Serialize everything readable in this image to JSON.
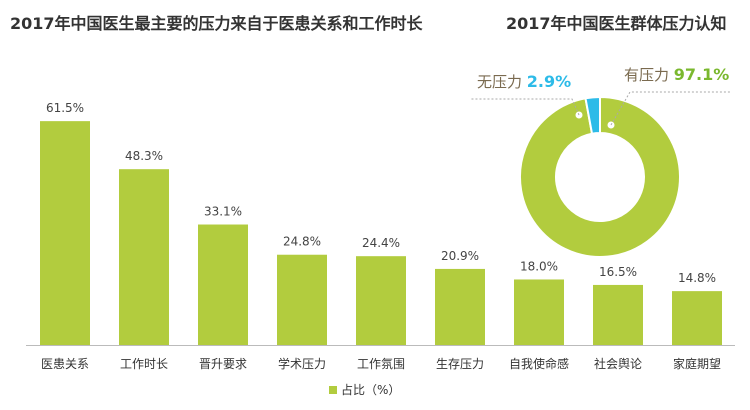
{
  "chart_data": [
    {
      "type": "bar",
      "title": "2017年中国医生最主要的压力来自于医患关系和工作时长",
      "categories": [
        "医患关系",
        "工作时长",
        "晋升要求",
        "学术压力",
        "工作氛围",
        "生存压力",
        "自我使命感",
        "社会舆论",
        "家庭期望"
      ],
      "values": [
        61.5,
        48.3,
        33.1,
        24.8,
        24.4,
        20.9,
        18.0,
        16.5,
        14.8
      ],
      "value_labels": [
        "61.5%",
        "48.3%",
        "33.1%",
        "24.8%",
        "24.4%",
        "20.9%",
        "18.0%",
        "16.5%",
        "14.8%"
      ],
      "legend": "占比（%）",
      "legend_position": "bottom",
      "color": "#b2cc3e",
      "ylim": [
        0,
        70
      ],
      "grid": false
    },
    {
      "type": "pie",
      "title": "2017年中国医生群体压力认知",
      "slices": [
        {
          "label": "有压力",
          "value": 97.1,
          "text": "97.1%",
          "color": "#b2cc3e",
          "text_color": "#7ab82e"
        },
        {
          "label": "无压力",
          "value": 2.9,
          "text": "2.9%",
          "color": "#2dbbe8",
          "text_color": "#2dbbe8"
        }
      ]
    }
  ]
}
